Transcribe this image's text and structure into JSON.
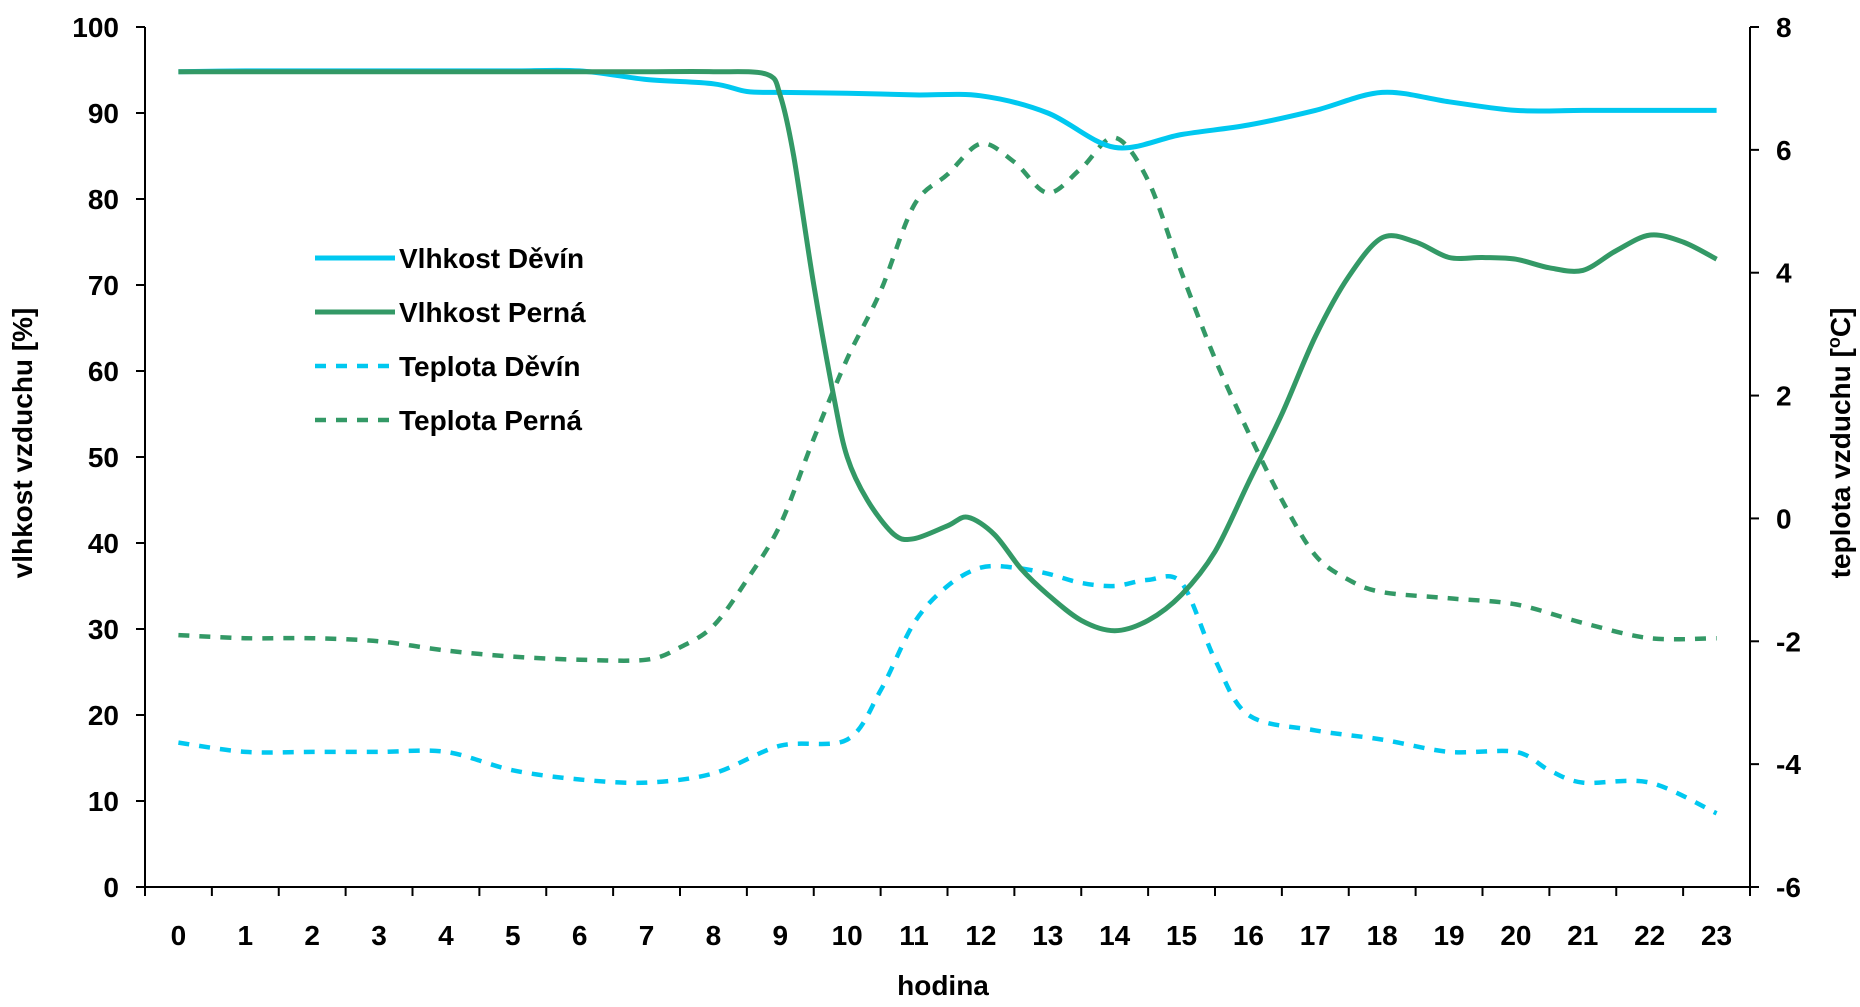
{
  "chart_data": {
    "type": "line",
    "xlabel": "hodina",
    "ylabel_left": "vlhkost vzduchu [%]",
    "ylabel_right_prefix": "teplota vzduchu [",
    "ylabel_right_sup": "o",
    "ylabel_right_suffix": "C]",
    "x": [
      0,
      1,
      2,
      3,
      4,
      5,
      6,
      7,
      8,
      9,
      10,
      11,
      12,
      13,
      14,
      15,
      16,
      17,
      18,
      19,
      20,
      21,
      22,
      23
    ],
    "y_left_range": [
      0,
      100
    ],
    "y_left_ticks": [
      "0",
      "10",
      "20",
      "30",
      "40",
      "50",
      "60",
      "70",
      "80",
      "90",
      "100"
    ],
    "y_right_range": [
      -6,
      8
    ],
    "y_right_ticks": [
      "-6",
      "-4",
      "-2",
      "0",
      "2",
      "4",
      "6",
      "8"
    ],
    "grid": false,
    "legend_position": "left",
    "series": [
      {
        "name": "Vlhkost Děvín",
        "axis": "left",
        "style": "solid",
        "color": "#00c8f0",
        "points": [
          [
            0,
            94.8
          ],
          [
            1,
            94.9
          ],
          [
            2,
            94.9
          ],
          [
            3,
            94.9
          ],
          [
            4,
            94.9
          ],
          [
            5,
            94.9
          ],
          [
            6,
            94.9
          ],
          [
            7,
            93.9
          ],
          [
            8,
            93.4
          ],
          [
            8.5,
            92.5
          ],
          [
            9,
            92.4
          ],
          [
            10,
            92.3
          ],
          [
            11,
            92.1
          ],
          [
            12,
            92
          ],
          [
            13,
            90
          ],
          [
            14,
            86
          ],
          [
            15,
            87.5
          ],
          [
            16,
            88.6
          ],
          [
            17,
            90.3
          ],
          [
            18,
            92.4
          ],
          [
            19,
            91.3
          ],
          [
            20,
            90.3
          ],
          [
            21,
            90.3
          ],
          [
            22,
            90.3
          ],
          [
            23,
            90.3
          ]
        ]
      },
      {
        "name": "Vlhkost Perná",
        "axis": "left",
        "style": "solid",
        "color": "#339966",
        "points": [
          [
            0,
            94.8
          ],
          [
            1,
            94.8
          ],
          [
            2,
            94.8
          ],
          [
            3,
            94.8
          ],
          [
            4,
            94.8
          ],
          [
            5,
            94.8
          ],
          [
            6,
            94.8
          ],
          [
            7,
            94.8
          ],
          [
            8,
            94.8
          ],
          [
            8.8,
            94.5
          ],
          [
            9,
            92
          ],
          [
            9.2,
            85
          ],
          [
            9.5,
            70
          ],
          [
            9.8,
            57
          ],
          [
            10,
            50
          ],
          [
            10.3,
            45
          ],
          [
            10.7,
            41
          ],
          [
            11,
            40.5
          ],
          [
            11.5,
            42
          ],
          [
            11.8,
            43
          ],
          [
            12.2,
            41
          ],
          [
            12.6,
            37
          ],
          [
            13,
            34
          ],
          [
            13.5,
            31
          ],
          [
            14,
            29.8
          ],
          [
            14.5,
            31
          ],
          [
            15,
            34
          ],
          [
            15.5,
            39
          ],
          [
            16,
            47
          ],
          [
            16.5,
            55
          ],
          [
            17,
            64
          ],
          [
            17.5,
            71
          ],
          [
            18,
            75.5
          ],
          [
            18.5,
            75
          ],
          [
            19,
            73.2
          ],
          [
            19.5,
            73.2
          ],
          [
            20,
            73
          ],
          [
            20.5,
            72
          ],
          [
            21,
            71.7
          ],
          [
            21.5,
            74
          ],
          [
            22,
            75.8
          ],
          [
            22.5,
            75
          ],
          [
            23,
            73
          ]
        ]
      },
      {
        "name": "Teplota Děvín",
        "axis": "right",
        "style": "dashed",
        "color": "#00c8f0",
        "points": [
          [
            0,
            -3.65
          ],
          [
            1,
            -3.8
          ],
          [
            2,
            -3.8
          ],
          [
            3,
            -3.8
          ],
          [
            4,
            -3.8
          ],
          [
            5,
            -4.1
          ],
          [
            6,
            -4.25
          ],
          [
            7,
            -4.3
          ],
          [
            8,
            -4.15
          ],
          [
            9,
            -3.7
          ],
          [
            10,
            -3.6
          ],
          [
            10.5,
            -2.8
          ],
          [
            11,
            -1.7
          ],
          [
            11.5,
            -1.1
          ],
          [
            12,
            -0.8
          ],
          [
            12.5,
            -0.8
          ],
          [
            13,
            -0.9
          ],
          [
            13.5,
            -1.05
          ],
          [
            14,
            -1.1
          ],
          [
            14.5,
            -1.0
          ],
          [
            15,
            -1.05
          ],
          [
            15.5,
            -2.3
          ],
          [
            16,
            -3.2
          ],
          [
            17,
            -3.45
          ],
          [
            18,
            -3.6
          ],
          [
            19,
            -3.8
          ],
          [
            20,
            -3.8
          ],
          [
            20.5,
            -4.1
          ],
          [
            21,
            -4.3
          ],
          [
            22,
            -4.3
          ],
          [
            23,
            -4.8
          ]
        ]
      },
      {
        "name": "Teplota Perná",
        "axis": "right",
        "style": "dashed",
        "color": "#339966",
        "points": [
          [
            0,
            -1.9
          ],
          [
            1,
            -1.95
          ],
          [
            2,
            -1.95
          ],
          [
            3,
            -2.0
          ],
          [
            4,
            -2.15
          ],
          [
            5,
            -2.25
          ],
          [
            6,
            -2.3
          ],
          [
            7,
            -2.3
          ],
          [
            7.5,
            -2.1
          ],
          [
            8,
            -1.75
          ],
          [
            8.5,
            -1.0
          ],
          [
            9,
            -0.1
          ],
          [
            9.5,
            1.3
          ],
          [
            10,
            2.6
          ],
          [
            10.5,
            3.7
          ],
          [
            11,
            5.1
          ],
          [
            11.5,
            5.6
          ],
          [
            12,
            6.1
          ],
          [
            12.5,
            5.8
          ],
          [
            13,
            5.3
          ],
          [
            13.5,
            5.7
          ],
          [
            14,
            6.2
          ],
          [
            14.5,
            5.5
          ],
          [
            15,
            4.0
          ],
          [
            15.5,
            2.6
          ],
          [
            16,
            1.4
          ],
          [
            16.5,
            0.3
          ],
          [
            17,
            -0.6
          ],
          [
            17.5,
            -1.0
          ],
          [
            18,
            -1.2
          ],
          [
            19,
            -1.3
          ],
          [
            20,
            -1.4
          ],
          [
            21,
            -1.7
          ],
          [
            22,
            -1.95
          ],
          [
            23,
            -1.95
          ]
        ]
      }
    ]
  }
}
